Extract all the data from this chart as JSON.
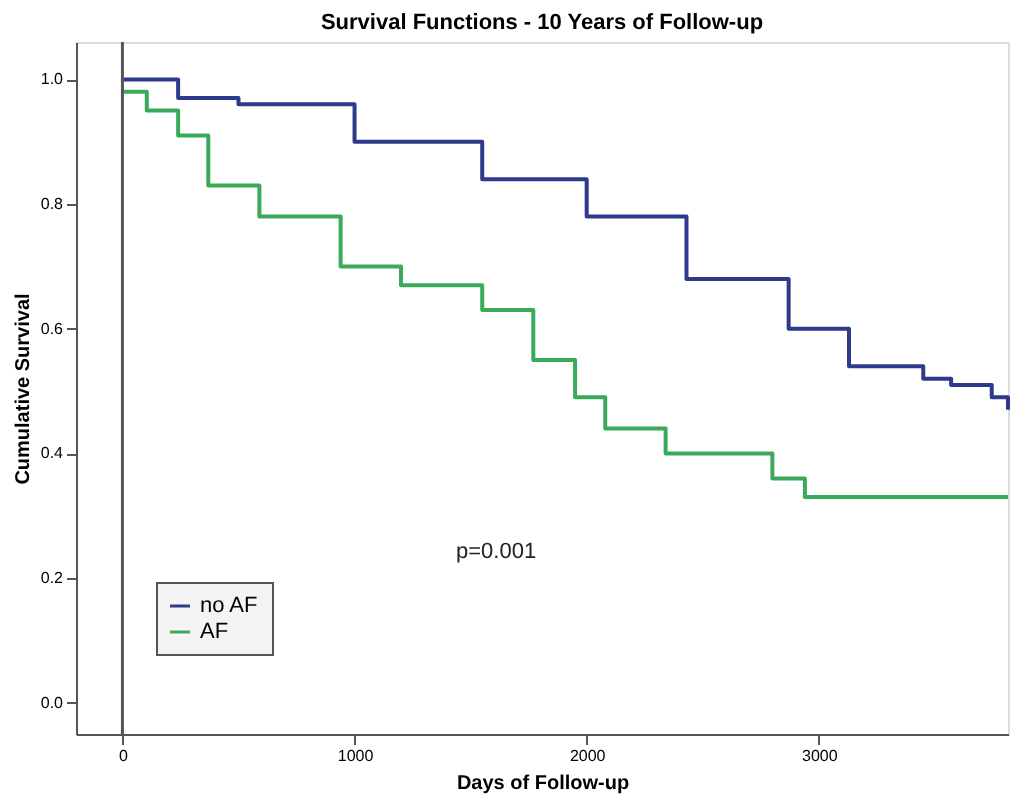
{
  "chart_data": {
    "type": "step",
    "title": "Survival Functions - 10 Years of Follow-up",
    "xlabel": "Days of Follow-up",
    "ylabel": "Cumulative Survival",
    "xlim": [
      -200,
      3815
    ],
    "xticks": [
      0,
      1000,
      2000,
      3000
    ],
    "ylim": [
      -0.05,
      1.06
    ],
    "yticks": [
      {
        "value": 0,
        "label": "0.0"
      },
      {
        "value": 0.2,
        "label": "0.2"
      },
      {
        "value": 0.4,
        "label": "0.4"
      },
      {
        "value": 0.6,
        "label": "0.6"
      },
      {
        "value": 0.8,
        "label": "0.8"
      },
      {
        "value": 1,
        "label": "1.0"
      }
    ],
    "series": [
      {
        "name": "no AF",
        "color": "#2e3a8c",
        "x": [
          0,
          240,
          500,
          1000,
          1550,
          2000,
          2430,
          2870,
          3130,
          3450,
          3570,
          3745,
          3815
        ],
        "values": [
          1.0,
          0.97,
          0.96,
          0.9,
          0.84,
          0.78,
          0.68,
          0.6,
          0.54,
          0.52,
          0.51,
          0.49,
          0.47
        ]
      },
      {
        "name": "AF",
        "color": "#3aaa5a",
        "x": [
          0,
          105,
          240,
          370,
          590,
          940,
          1200,
          1550,
          1770,
          1950,
          2080,
          2340,
          2800,
          2940,
          3815
        ],
        "values": [
          0.98,
          0.95,
          0.91,
          0.83,
          0.78,
          0.7,
          0.67,
          0.63,
          0.55,
          0.49,
          0.44,
          0.4,
          0.36,
          0.33,
          0.33
        ]
      }
    ],
    "ref_lines": [
      {
        "axis": "x",
        "value": 0,
        "color": "#555555"
      }
    ],
    "annotations": [
      "p=0.001"
    ],
    "legend": "bottom left",
    "grid": false,
    "marker": "none",
    "line_style": "solid"
  }
}
